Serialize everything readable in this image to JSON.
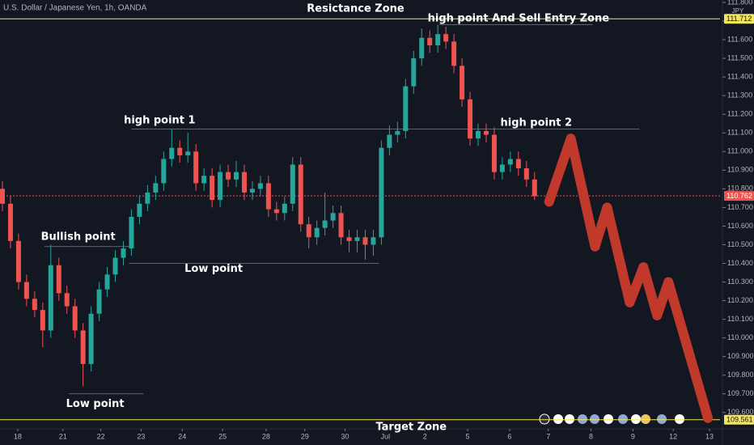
{
  "chart_data": {
    "type": "candlestick",
    "title": "U.S. Dollar / Japanese Yen, 1h, OANDA",
    "y_unit": "JPY",
    "up_color": "#26a69a",
    "down_color": "#ef5350",
    "xlim": [
      -0.3,
      89
    ],
    "ylim": [
      109.534,
      111.813
    ],
    "yticks": [
      {
        "value": 109.6,
        "label": "109.600"
      },
      {
        "value": 109.7,
        "label": "109.700"
      },
      {
        "value": 109.8,
        "label": "109.800"
      },
      {
        "value": 109.9,
        "label": "109.900"
      },
      {
        "value": 110.0,
        "label": "110.000"
      },
      {
        "value": 110.1,
        "label": "110.100"
      },
      {
        "value": 110.2,
        "label": "110.200"
      },
      {
        "value": 110.3,
        "label": "110.300"
      },
      {
        "value": 110.4,
        "label": "110.400"
      },
      {
        "value": 110.5,
        "label": "110.500"
      },
      {
        "value": 110.6,
        "label": "110.600"
      },
      {
        "value": 110.7,
        "label": "110.700"
      },
      {
        "value": 110.8,
        "label": "110.800"
      },
      {
        "value": 110.9,
        "label": "110.900"
      },
      {
        "value": 111.0,
        "label": "111.000"
      },
      {
        "value": 111.1,
        "label": "111.100"
      },
      {
        "value": 111.2,
        "label": "111.200"
      },
      {
        "value": 111.3,
        "label": "111.300"
      },
      {
        "value": 111.4,
        "label": "111.400"
      },
      {
        "value": 111.5,
        "label": "111.500"
      },
      {
        "value": 111.6,
        "label": "111.600"
      },
      {
        "value": 111.7,
        "label": "111.700"
      },
      {
        "value": 111.8,
        "label": "111.800"
      }
    ],
    "xticks": [
      {
        "value": 1.9,
        "label": "18"
      },
      {
        "value": 7.5,
        "label": "21"
      },
      {
        "value": 12.2,
        "label": "22"
      },
      {
        "value": 17.2,
        "label": "23"
      },
      {
        "value": 22.3,
        "label": "24"
      },
      {
        "value": 27.3,
        "label": "25"
      },
      {
        "value": 32.7,
        "label": "28"
      },
      {
        "value": 37.5,
        "label": "29"
      },
      {
        "value": 42.5,
        "label": "30"
      },
      {
        "value": 47.5,
        "label": "Jul"
      },
      {
        "value": 52.4,
        "label": "2"
      },
      {
        "value": 57.7,
        "label": "5"
      },
      {
        "value": 62.9,
        "label": "6"
      },
      {
        "value": 67.7,
        "label": "7"
      },
      {
        "value": 73,
        "label": "8"
      },
      {
        "value": 78.2,
        "label": "9"
      },
      {
        "value": 83.2,
        "label": "12"
      },
      {
        "value": 87.7,
        "label": "13"
      }
    ],
    "ohlc": [
      [
        110.8,
        110.84,
        110.68,
        110.72
      ],
      [
        110.72,
        110.76,
        110.48,
        110.52
      ],
      [
        110.52,
        110.56,
        110.26,
        110.3
      ],
      [
        110.3,
        110.34,
        110.17,
        110.21
      ],
      [
        110.21,
        110.25,
        110.11,
        110.15
      ],
      [
        110.15,
        110.19,
        109.95,
        110.04
      ],
      [
        110.04,
        110.5,
        110.0,
        110.39
      ],
      [
        110.39,
        110.43,
        110.2,
        110.24
      ],
      [
        110.24,
        110.28,
        110.13,
        110.17
      ],
      [
        110.17,
        110.21,
        110.0,
        110.04
      ],
      [
        110.04,
        110.08,
        109.74,
        109.86
      ],
      [
        109.86,
        110.17,
        109.82,
        110.13
      ],
      [
        110.13,
        110.3,
        110.09,
        110.26
      ],
      [
        110.26,
        110.38,
        110.22,
        110.34
      ],
      [
        110.34,
        110.47,
        110.3,
        110.43
      ],
      [
        110.43,
        110.52,
        110.39,
        110.48
      ],
      [
        110.48,
        110.69,
        110.44,
        110.65
      ],
      [
        110.65,
        110.76,
        110.61,
        110.72
      ],
      [
        110.72,
        110.82,
        110.68,
        110.78
      ],
      [
        110.78,
        110.87,
        110.74,
        110.83
      ],
      [
        110.83,
        111.0,
        110.79,
        110.96
      ],
      [
        110.96,
        111.12,
        110.92,
        111.02
      ],
      [
        111.02,
        111.06,
        110.94,
        110.98
      ],
      [
        110.98,
        111.1,
        110.94,
        111.0
      ],
      [
        111.0,
        111.04,
        110.79,
        110.83
      ],
      [
        110.83,
        110.91,
        110.79,
        110.87
      ],
      [
        110.87,
        110.91,
        110.7,
        110.74
      ],
      [
        110.74,
        110.93,
        110.7,
        110.89
      ],
      [
        110.89,
        110.93,
        110.81,
        110.85
      ],
      [
        110.85,
        110.95,
        110.81,
        110.89
      ],
      [
        110.89,
        110.93,
        110.74,
        110.78
      ],
      [
        110.78,
        110.84,
        110.74,
        110.8
      ],
      [
        110.8,
        110.87,
        110.76,
        110.83
      ],
      [
        110.83,
        110.87,
        110.65,
        110.69
      ],
      [
        110.69,
        110.73,
        110.63,
        110.67
      ],
      [
        110.67,
        110.76,
        110.63,
        110.72
      ],
      [
        110.72,
        110.97,
        110.68,
        110.93
      ],
      [
        110.93,
        110.97,
        110.57,
        110.61
      ],
      [
        110.61,
        110.65,
        110.48,
        110.54
      ],
      [
        110.54,
        110.63,
        110.5,
        110.59
      ],
      [
        110.59,
        110.78,
        110.55,
        110.63
      ],
      [
        110.63,
        110.71,
        110.59,
        110.67
      ],
      [
        110.67,
        110.71,
        110.5,
        110.54
      ],
      [
        110.54,
        110.58,
        110.46,
        110.52
      ],
      [
        110.52,
        110.58,
        110.46,
        110.54
      ],
      [
        110.54,
        110.58,
        110.42,
        110.5
      ],
      [
        110.5,
        110.58,
        110.44,
        110.54
      ],
      [
        110.54,
        111.06,
        110.5,
        111.02
      ],
      [
        111.02,
        111.14,
        110.98,
        111.09
      ],
      [
        111.09,
        111.16,
        111.05,
        111.11
      ],
      [
        111.11,
        111.39,
        111.07,
        111.35
      ],
      [
        111.35,
        111.54,
        111.31,
        111.5
      ],
      [
        111.5,
        111.66,
        111.46,
        111.61
      ],
      [
        111.61,
        111.65,
        111.53,
        111.57
      ],
      [
        111.57,
        111.68,
        111.53,
        111.63
      ],
      [
        111.63,
        111.67,
        111.55,
        111.59
      ],
      [
        111.59,
        111.63,
        111.42,
        111.46
      ],
      [
        111.46,
        111.5,
        111.24,
        111.28
      ],
      [
        111.28,
        111.32,
        111.03,
        111.07
      ],
      [
        111.07,
        111.15,
        111.03,
        111.11
      ],
      [
        111.11,
        111.15,
        111.05,
        111.09
      ],
      [
        111.09,
        111.13,
        110.85,
        110.89
      ],
      [
        110.89,
        110.97,
        110.85,
        110.93
      ],
      [
        110.93,
        111.0,
        110.89,
        110.96
      ],
      [
        110.96,
        111.0,
        110.87,
        110.91
      ],
      [
        110.91,
        110.95,
        110.81,
        110.85
      ],
      [
        110.85,
        110.89,
        110.74,
        110.76
      ]
    ],
    "levels": [
      {
        "value": 111.712,
        "x0": -0.3,
        "x1": 89,
        "color": "#f2e55c",
        "tag": true
      },
      {
        "value": 111.68,
        "x0": 54.2,
        "x1": 73.2,
        "color": "#787b86"
      },
      {
        "value": 111.12,
        "x0": 16,
        "x1": 79,
        "color": "#787b86"
      },
      {
        "value": 110.49,
        "x0": 5.2,
        "x1": 15.7,
        "color": "#787b86"
      },
      {
        "value": 110.4,
        "x0": 15.7,
        "x1": 46.7,
        "color": "#787b86"
      },
      {
        "value": 109.7,
        "x0": 8.2,
        "x1": 17.5,
        "color": "#787b86"
      },
      {
        "value": 110.762,
        "x0": -0.3,
        "x1": 89,
        "color": "#ef5350",
        "tag": true
      },
      {
        "value": 109.561,
        "x0": -0.3,
        "x1": 89,
        "color": "#f2e55c",
        "tag": true
      }
    ],
    "annotations": [
      {
        "text": "Resictance Zone",
        "x": 43.8,
        "y": 111.766
      },
      {
        "text": "high point And Sell Entry Zone",
        "x": 64,
        "y": 111.713
      },
      {
        "text": "high point 1",
        "x": 19.5,
        "y": 111.166
      },
      {
        "text": "high point 2",
        "x": 66.2,
        "y": 111.153
      },
      {
        "text": "Bullish point",
        "x": 9.4,
        "y": 110.541
      },
      {
        "text": "Low point",
        "x": 26.2,
        "y": 110.37
      },
      {
        "text": "Low point",
        "x": 11.5,
        "y": 109.644
      },
      {
        "text": "Target Zone",
        "x": 50.7,
        "y": 109.522
      }
    ],
    "projection": {
      "color": "#c0392b",
      "x": [
        67.8,
        70.5,
        73.5,
        75,
        77.8,
        79.5,
        81.2,
        82.6,
        87.5
      ],
      "y": [
        110.73,
        111.07,
        110.49,
        110.7,
        110.19,
        110.38,
        110.12,
        110.3,
        109.57
      ]
    }
  }
}
